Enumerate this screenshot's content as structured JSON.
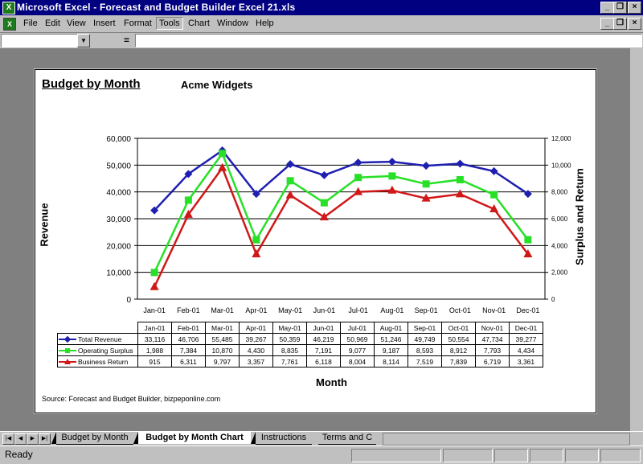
{
  "window": {
    "title": "Microsoft Excel - Forecast and Budget Builder Excel 21.xls"
  },
  "menu": [
    "File",
    "Edit",
    "View",
    "Insert",
    "Format",
    "Tools",
    "Chart",
    "Window",
    "Help"
  ],
  "formula_bar": {
    "name_box": "",
    "equals": "=",
    "formula": ""
  },
  "chart": {
    "title": "Budget by Month",
    "subtitle": "Acme Widgets",
    "ylabel_left": "Revenue",
    "ylabel_right": "Surplus and Return",
    "xlabel": "Month",
    "source": "Source: Forecast and Budget Builder, bizpeponline.com"
  },
  "chart_data": {
    "type": "line",
    "categories": [
      "Jan-01",
      "Feb-01",
      "Mar-01",
      "Apr-01",
      "May-01",
      "Jun-01",
      "Jul-01",
      "Aug-01",
      "Sep-01",
      "Oct-01",
      "Nov-01",
      "Dec-01"
    ],
    "series": [
      {
        "name": "Total Revenue",
        "axis": "left",
        "color": "#1f1fb0",
        "marker": "diamond",
        "values": [
          33116,
          46706,
          55485,
          39267,
          50359,
          46219,
          50969,
          51246,
          49749,
          50554,
          47734,
          39277
        ],
        "labels": [
          "33,116",
          "46,706",
          "55,485",
          "39,267",
          "50,359",
          "46,219",
          "50,969",
          "51,246",
          "49,749",
          "50,554",
          "47,734",
          "39,277"
        ]
      },
      {
        "name": "Operating Surplus",
        "axis": "right",
        "color": "#27e027",
        "marker": "square",
        "values": [
          1988,
          7384,
          10870,
          4430,
          8835,
          7191,
          9077,
          9187,
          8593,
          8912,
          7793,
          4434
        ],
        "labels": [
          "1,988",
          "7,384",
          "10,870",
          "4,430",
          "8,835",
          "7,191",
          "9,077",
          "9,187",
          "8,593",
          "8,912",
          "7,793",
          "4,434"
        ]
      },
      {
        "name": "Business Return",
        "axis": "right",
        "color": "#d01818",
        "marker": "triangle",
        "values": [
          915,
          6311,
          9797,
          3357,
          7761,
          6118,
          8004,
          8114,
          7519,
          7839,
          6719,
          3361
        ],
        "labels": [
          "915",
          "6,311",
          "9,797",
          "3,357",
          "7,761",
          "6,118",
          "8,004",
          "8,114",
          "7,519",
          "7,839",
          "6,719",
          "3,361"
        ]
      }
    ],
    "ylim_left": [
      0,
      60000
    ],
    "yticks_left": [
      "0",
      "10,000",
      "20,000",
      "30,000",
      "40,000",
      "50,000",
      "60,000"
    ],
    "ylim_right": [
      0,
      12000
    ],
    "yticks_right": [
      "0",
      "2,000",
      "4,000",
      "6,000",
      "8,000",
      "10,000",
      "12,000"
    ],
    "grid": true,
    "legend": "data-table"
  },
  "sheet_tabs": [
    "Budget by Month",
    "Budget by Month Chart",
    "Instructions",
    "Terms and C"
  ],
  "active_tab": "Budget by Month Chart",
  "status": {
    "text": "Ready"
  }
}
